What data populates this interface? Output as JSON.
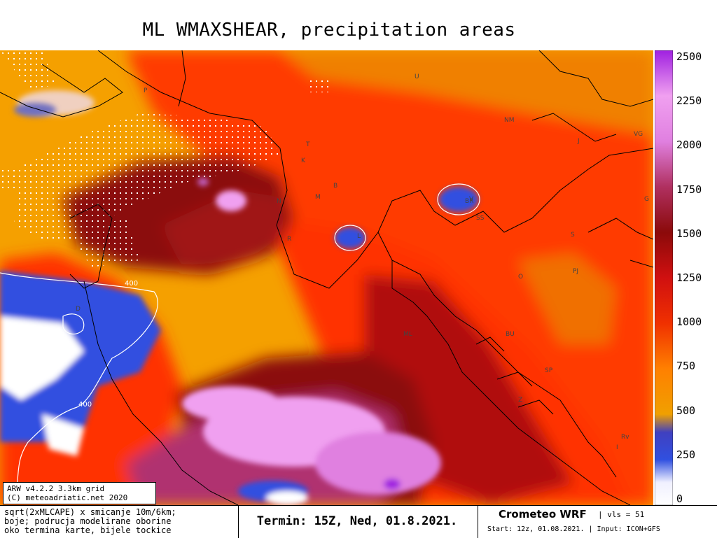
{
  "title": "ML WMAXSHEAR, precipitation areas",
  "colorbar": {
    "labels": [
      "2500",
      "2250",
      "2000",
      "1750",
      "1500",
      "1250",
      "1000",
      "750",
      "500",
      "250",
      "0"
    ],
    "colors": [
      "#ffffff",
      "#3050e0",
      "#f0a000",
      "#ff8000",
      "#f03000",
      "#d01010",
      "#8b0a0a",
      "#b03060",
      "#e080e0",
      "#f0a0f0",
      "#a020e0"
    ]
  },
  "map": {
    "contour_value": "400",
    "place_labels": [
      "P",
      "T",
      "K",
      "N",
      "R",
      "M",
      "L",
      "B",
      "U",
      "NM",
      "J",
      "V",
      "G",
      "S",
      "O",
      "BR",
      "SS",
      "ML",
      "Z",
      "SP",
      "BU",
      "PJ",
      "D",
      "I",
      "VG",
      "Rv"
    ]
  },
  "credit": {
    "line1": "ARW v4.2.2 3.3km grid",
    "line2": "(C) meteoadriatic.net 2020"
  },
  "footer": {
    "desc_line1": "sqrt(2xMLCAPE) x smicanje 10m/6km;",
    "desc_line2": "boje; podrucja modelirane oborine",
    "desc_line3": "oko termina karte, bijele tockice",
    "termin": "Termin: 15Z, Ned, 01.8.2021.",
    "model": "Crometeo WRF",
    "vls": "| vls = 51",
    "start": "Start: 12z, 01.08.2021. | Input: ICON+GFS"
  }
}
